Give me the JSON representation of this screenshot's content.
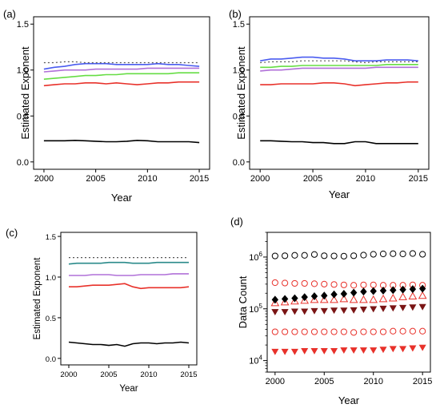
{
  "chart_data": [
    {
      "panel_label": "(a)",
      "type": "line",
      "xlabel": "Year",
      "ylabel": "Estimated Exponent",
      "xlim": [
        1999,
        2016
      ],
      "ylim": [
        -0.08,
        1.58
      ],
      "xticks": [
        "2000",
        "2005",
        "2010",
        "2015"
      ],
      "yticks": [
        "0.0",
        "0.5",
        "1.0",
        "1.5"
      ],
      "x": [
        2000,
        2001,
        2002,
        2003,
        2004,
        2005,
        2006,
        2007,
        2008,
        2009,
        2010,
        2011,
        2012,
        2013,
        2014,
        2015
      ],
      "series": [
        {
          "color": "#000000",
          "style": "solid",
          "values": [
            0.23,
            0.23,
            0.23,
            0.235,
            0.23,
            0.225,
            0.22,
            0.22,
            0.225,
            0.235,
            0.23,
            0.22,
            0.22,
            0.22,
            0.22,
            0.21
          ]
        },
        {
          "color": "#e8312a",
          "style": "solid",
          "values": [
            0.83,
            0.84,
            0.85,
            0.85,
            0.86,
            0.86,
            0.85,
            0.86,
            0.85,
            0.84,
            0.85,
            0.86,
            0.86,
            0.87,
            0.87,
            0.87
          ]
        },
        {
          "color": "#66dd44",
          "style": "solid",
          "values": [
            0.9,
            0.91,
            0.92,
            0.93,
            0.94,
            0.94,
            0.95,
            0.95,
            0.96,
            0.96,
            0.96,
            0.96,
            0.96,
            0.97,
            0.97,
            0.97
          ]
        },
        {
          "color": "#b070d8",
          "style": "solid",
          "values": [
            0.98,
            0.99,
            1.0,
            1.0,
            1.0,
            1.01,
            1.01,
            1.01,
            1.01,
            1.01,
            1.02,
            1.02,
            1.02,
            1.02,
            1.02,
            1.02
          ]
        },
        {
          "color": "#4a5cf0",
          "style": "solid",
          "values": [
            1.01,
            1.03,
            1.04,
            1.06,
            1.07,
            1.07,
            1.07,
            1.06,
            1.06,
            1.06,
            1.06,
            1.07,
            1.06,
            1.06,
            1.05,
            1.04
          ]
        },
        {
          "color": "#555555",
          "style": "dotted",
          "values": [
            1.08,
            1.08,
            1.09,
            1.09,
            1.08,
            1.08,
            1.08,
            1.08,
            1.08,
            1.08,
            1.08,
            1.08,
            1.08,
            1.08,
            1.08,
            1.08
          ]
        }
      ]
    },
    {
      "panel_label": "(b)",
      "type": "line",
      "xlabel": "Year",
      "ylabel": "Estimated Exponent",
      "xlim": [
        1999,
        2016
      ],
      "ylim": [
        -0.08,
        1.58
      ],
      "xticks": [
        "2000",
        "2005",
        "2010",
        "2015"
      ],
      "yticks": [
        "0.0",
        "0.5",
        "1.0",
        "1.5"
      ],
      "x": [
        2000,
        2001,
        2002,
        2003,
        2004,
        2005,
        2006,
        2007,
        2008,
        2009,
        2010,
        2011,
        2012,
        2013,
        2014,
        2015
      ],
      "series": [
        {
          "color": "#000000",
          "style": "solid",
          "values": [
            0.23,
            0.23,
            0.225,
            0.22,
            0.22,
            0.21,
            0.21,
            0.2,
            0.2,
            0.22,
            0.22,
            0.2,
            0.2,
            0.2,
            0.2,
            0.2
          ]
        },
        {
          "color": "#e8312a",
          "style": "solid",
          "values": [
            0.84,
            0.84,
            0.85,
            0.85,
            0.85,
            0.85,
            0.86,
            0.86,
            0.85,
            0.83,
            0.84,
            0.85,
            0.86,
            0.86,
            0.87,
            0.87
          ]
        },
        {
          "color": "#b070d8",
          "style": "solid",
          "values": [
            0.99,
            1.0,
            1.0,
            1.01,
            1.02,
            1.02,
            1.02,
            1.02,
            1.02,
            1.02,
            1.02,
            1.03,
            1.03,
            1.03,
            1.03,
            1.03
          ]
        },
        {
          "color": "#66dd44",
          "style": "solid",
          "values": [
            1.03,
            1.03,
            1.04,
            1.04,
            1.05,
            1.05,
            1.05,
            1.05,
            1.05,
            1.05,
            1.05,
            1.05,
            1.06,
            1.06,
            1.06,
            1.06
          ]
        },
        {
          "color": "#555555",
          "style": "dotted",
          "values": [
            1.08,
            1.09,
            1.09,
            1.09,
            1.1,
            1.1,
            1.1,
            1.1,
            1.1,
            1.09,
            1.08,
            1.09,
            1.09,
            1.09,
            1.09,
            1.09
          ]
        },
        {
          "color": "#4a5cf0",
          "style": "solid",
          "values": [
            1.1,
            1.12,
            1.12,
            1.13,
            1.14,
            1.14,
            1.13,
            1.13,
            1.12,
            1.1,
            1.1,
            1.1,
            1.11,
            1.11,
            1.11,
            1.1
          ]
        }
      ]
    },
    {
      "panel_label": "(c)",
      "type": "line",
      "xlabel": "Year",
      "ylabel": "Estimated Exponent",
      "xlim": [
        1999,
        2016
      ],
      "ylim": [
        -0.08,
        1.55
      ],
      "xticks": [
        "2000",
        "2005",
        "2010",
        "2015"
      ],
      "yticks": [
        "0.0",
        "0.5",
        "1.0",
        "1.5"
      ],
      "x": [
        2000,
        2001,
        2002,
        2003,
        2004,
        2005,
        2006,
        2007,
        2008,
        2009,
        2010,
        2011,
        2012,
        2013,
        2014,
        2015
      ],
      "series": [
        {
          "color": "#000000",
          "style": "solid",
          "values": [
            0.2,
            0.19,
            0.18,
            0.17,
            0.17,
            0.16,
            0.17,
            0.15,
            0.18,
            0.19,
            0.19,
            0.18,
            0.19,
            0.19,
            0.2,
            0.19
          ]
        },
        {
          "color": "#e8312a",
          "style": "solid",
          "values": [
            0.88,
            0.88,
            0.89,
            0.9,
            0.9,
            0.9,
            0.91,
            0.92,
            0.88,
            0.86,
            0.87,
            0.87,
            0.87,
            0.87,
            0.87,
            0.88
          ]
        },
        {
          "color": "#b070d8",
          "style": "solid",
          "values": [
            1.02,
            1.02,
            1.02,
            1.03,
            1.03,
            1.03,
            1.02,
            1.02,
            1.02,
            1.03,
            1.03,
            1.03,
            1.03,
            1.04,
            1.04,
            1.04
          ]
        },
        {
          "color": "#2a8a8a",
          "style": "solid",
          "values": [
            1.16,
            1.17,
            1.17,
            1.17,
            1.17,
            1.18,
            1.18,
            1.18,
            1.17,
            1.17,
            1.17,
            1.18,
            1.18,
            1.18,
            1.18,
            1.18
          ]
        },
        {
          "color": "#555555",
          "style": "dotted",
          "values": [
            1.24,
            1.24,
            1.24,
            1.24,
            1.24,
            1.24,
            1.24,
            1.24,
            1.24,
            1.24,
            1.24,
            1.24,
            1.24,
            1.24,
            1.24,
            1.24
          ]
        }
      ]
    },
    {
      "panel_label": "(d)",
      "type": "scatter",
      "scale": "log",
      "xlabel": "Year",
      "ylabel": "Data Count",
      "xlim": [
        1999.2,
        2015.8
      ],
      "ylim": [
        6000,
        3000000
      ],
      "xticks": [
        "2000",
        "2005",
        "2010",
        "2015"
      ],
      "ytick_values": [
        10000,
        100000,
        1000000
      ],
      "ytick_labels": [
        {
          "base": "10",
          "exp": "4"
        },
        {
          "base": "10",
          "exp": "5"
        },
        {
          "base": "10",
          "exp": "6"
        }
      ],
      "x": [
        2000,
        2001,
        2002,
        2003,
        2004,
        2005,
        2006,
        2007,
        2008,
        2009,
        2010,
        2011,
        2012,
        2013,
        2014,
        2015
      ],
      "series": [
        {
          "marker": "circle-open",
          "color": "#000000",
          "values": [
            1050000,
            1060000,
            1080000,
            1080000,
            1120000,
            1060000,
            1050000,
            1040000,
            1060000,
            1090000,
            1130000,
            1150000,
            1160000,
            1150000,
            1170000,
            1130000
          ]
        },
        {
          "marker": "circle-open",
          "color": "#e8312a",
          "values": [
            320000,
            315000,
            310000,
            310000,
            305000,
            300000,
            295000,
            290000,
            285000,
            290000,
            290000,
            285000,
            285000,
            285000,
            290000,
            285000
          ]
        },
        {
          "marker": "triangle-up-open",
          "color": "#e8312a",
          "values": [
            130000,
            135000,
            140000,
            145000,
            150000,
            150000,
            150000,
            155000,
            150000,
            150000,
            150000,
            155000,
            160000,
            170000,
            175000,
            180000
          ]
        },
        {
          "marker": "diamond-filled",
          "color": "#000000",
          "values": [
            150000,
            155000,
            160000,
            168000,
            175000,
            180000,
            190000,
            195000,
            205000,
            215000,
            220000,
            225000,
            230000,
            235000,
            240000,
            245000
          ]
        },
        {
          "marker": "triangle-down-filled",
          "color": "#7a1414",
          "values": [
            88000,
            88000,
            90000,
            90000,
            92000,
            92000,
            94000,
            94000,
            95000,
            98000,
            100000,
            102000,
            104000,
            106000,
            108000,
            110000
          ]
        },
        {
          "marker": "circle-open",
          "color": "#e8312a",
          "values": [
            36000,
            36000,
            36000,
            36000,
            36000,
            36000,
            36000,
            36000,
            35000,
            36000,
            36000,
            36000,
            37000,
            37000,
            37000,
            37000
          ]
        },
        {
          "marker": "triangle-down-filled",
          "color": "#e8312a",
          "values": [
            15000,
            15000,
            15000,
            15500,
            15500,
            15500,
            15500,
            16000,
            16000,
            16000,
            16000,
            16500,
            17000,
            17000,
            17500,
            18000
          ]
        }
      ]
    }
  ]
}
